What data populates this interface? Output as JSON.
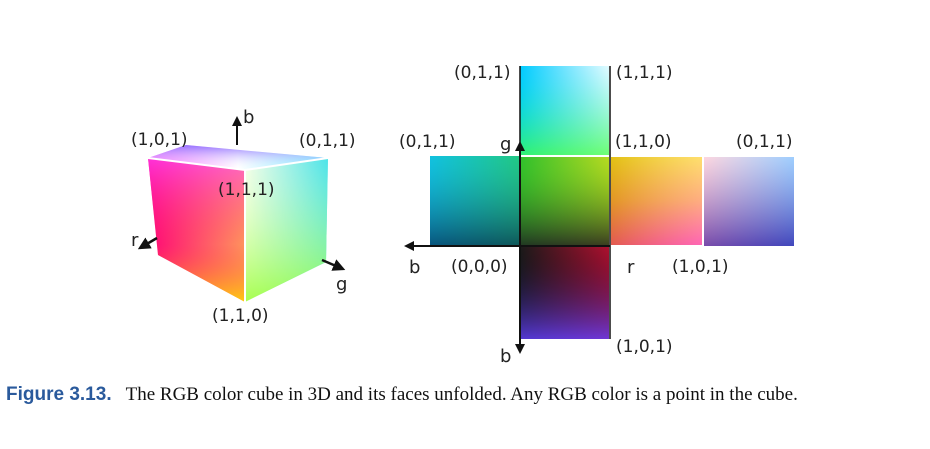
{
  "cube3d": {
    "label_top_left": "(1,0,1)",
    "label_top_right": "(0,1,1)",
    "label_center": "(1,1,1)",
    "label_bottom": "(1,1,0)",
    "axis_b": "b",
    "axis_r": "r",
    "axis_g": "g"
  },
  "unfolded": {
    "top_left": "(0,1,1)",
    "top_right": "(1,1,1)",
    "left_top": "(0,1,1)",
    "axis_g": "g",
    "center_top_right": "(1,1,0)",
    "far_right_top": "(0,1,1)",
    "axis_b_left": "b",
    "origin": "(0,0,0)",
    "axis_r": "r",
    "r_right": "(1,0,1)",
    "axis_b_down": "b",
    "bottom_right": "(1,0,1)"
  },
  "caption": {
    "figure": "Figure 3.13.",
    "text": "The RGB color cube in 3D and its faces unfolded. Any RGB color is a point in the cube."
  }
}
